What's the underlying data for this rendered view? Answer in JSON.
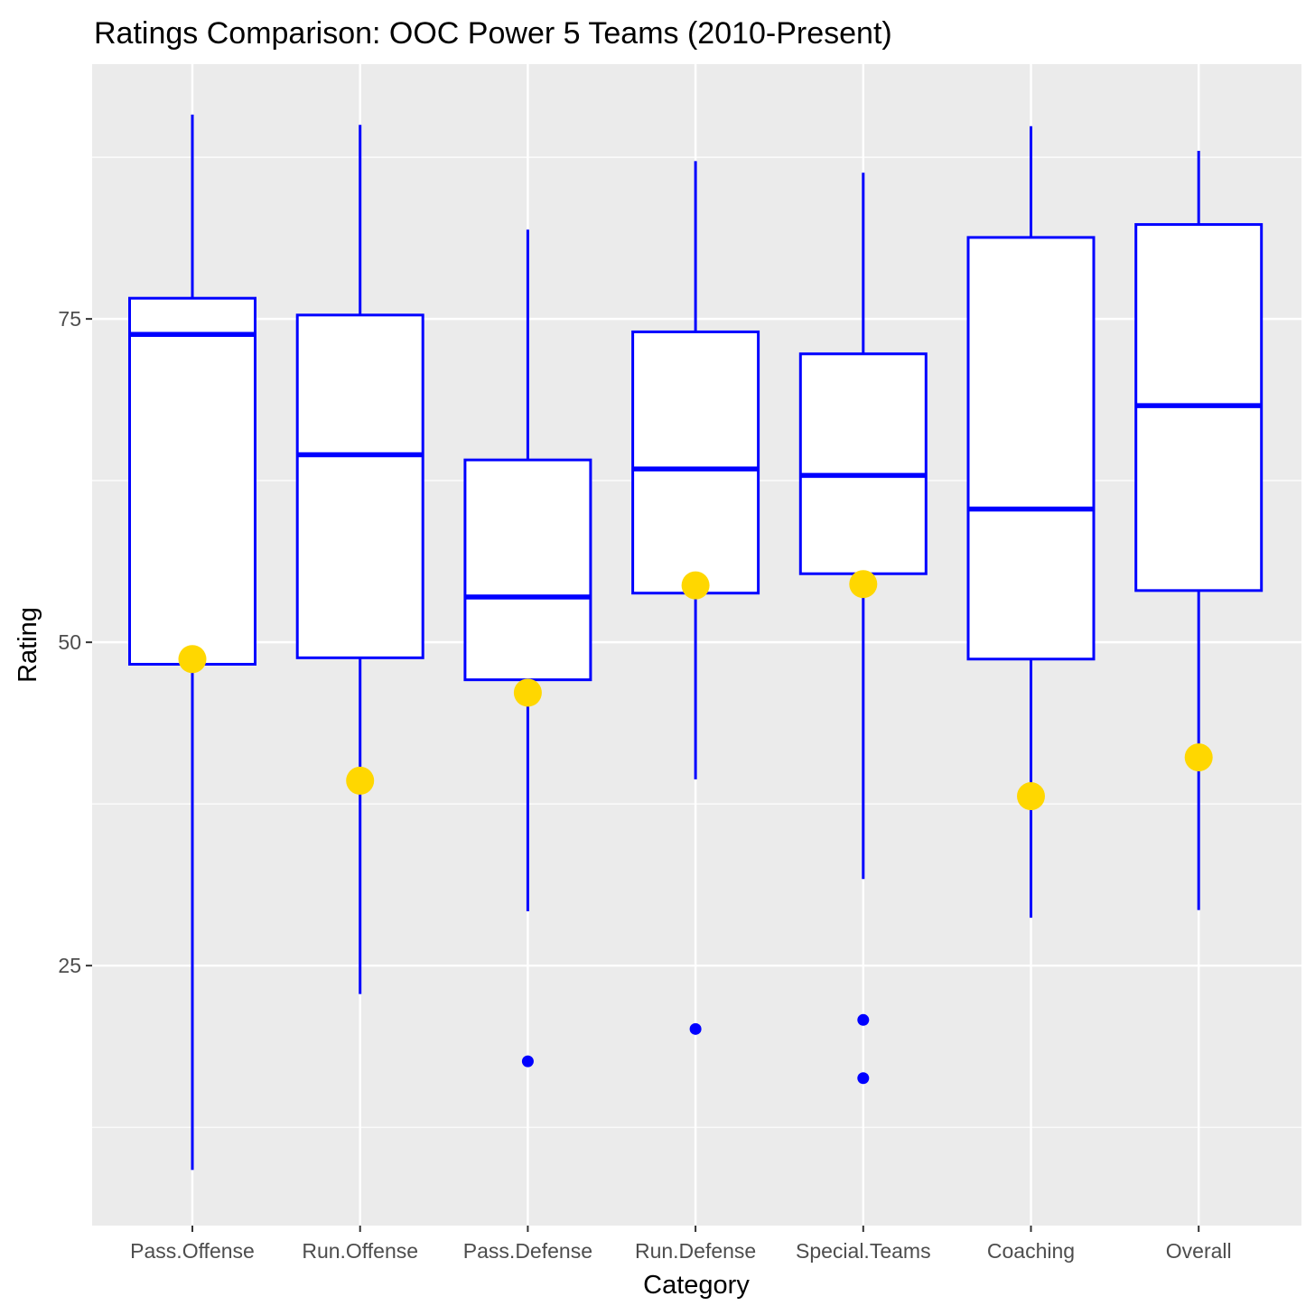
{
  "chart_data": {
    "type": "boxplot",
    "title": "Ratings Comparison: OOC Power 5 Teams (2010-Present)",
    "xlabel": "Category",
    "ylabel": "Rating",
    "ylim": [
      4.9,
      94.7
    ],
    "yticks": [
      25,
      50,
      75
    ],
    "grid": true,
    "legend": "none",
    "categories": [
      "Pass.Offense",
      "Run.Offense",
      "Pass.Defense",
      "Run.Defense",
      "Special.Teams",
      "Coaching",
      "Overall"
    ],
    "boxes": [
      {
        "whisker_low": 9.2,
        "q1": 48.3,
        "median": 73.8,
        "q3": 76.6,
        "whisker_high": 90.8,
        "outliers": []
      },
      {
        "whisker_low": 22.8,
        "q1": 48.8,
        "median": 64.5,
        "q3": 75.3,
        "whisker_high": 90.0,
        "outliers": []
      },
      {
        "whisker_low": 29.2,
        "q1": 47.1,
        "median": 53.5,
        "q3": 64.1,
        "whisker_high": 81.9,
        "outliers": [
          17.6
        ]
      },
      {
        "whisker_low": 39.4,
        "q1": 53.8,
        "median": 63.4,
        "q3": 74.0,
        "whisker_high": 87.2,
        "outliers": [
          20.1
        ]
      },
      {
        "whisker_low": 31.7,
        "q1": 55.3,
        "median": 62.9,
        "q3": 72.3,
        "whisker_high": 86.3,
        "outliers": [
          20.8,
          16.3
        ]
      },
      {
        "whisker_low": 28.7,
        "q1": 48.7,
        "median": 60.3,
        "q3": 81.3,
        "whisker_high": 89.9,
        "outliers": []
      },
      {
        "whisker_low": 29.3,
        "q1": 54.0,
        "median": 68.3,
        "q3": 82.3,
        "whisker_high": 88.0,
        "outliers": []
      }
    ],
    "highlight_points": [
      48.7,
      39.3,
      46.1,
      54.4,
      54.5,
      38.1,
      41.1
    ],
    "colors": {
      "panel": "#EBEBEB",
      "grid": "#FFFFFF",
      "box_stroke": "#0000FF",
      "box_fill": "#FFFFFF",
      "highlight": "#FFD700",
      "outlier": "#0000FF"
    }
  }
}
